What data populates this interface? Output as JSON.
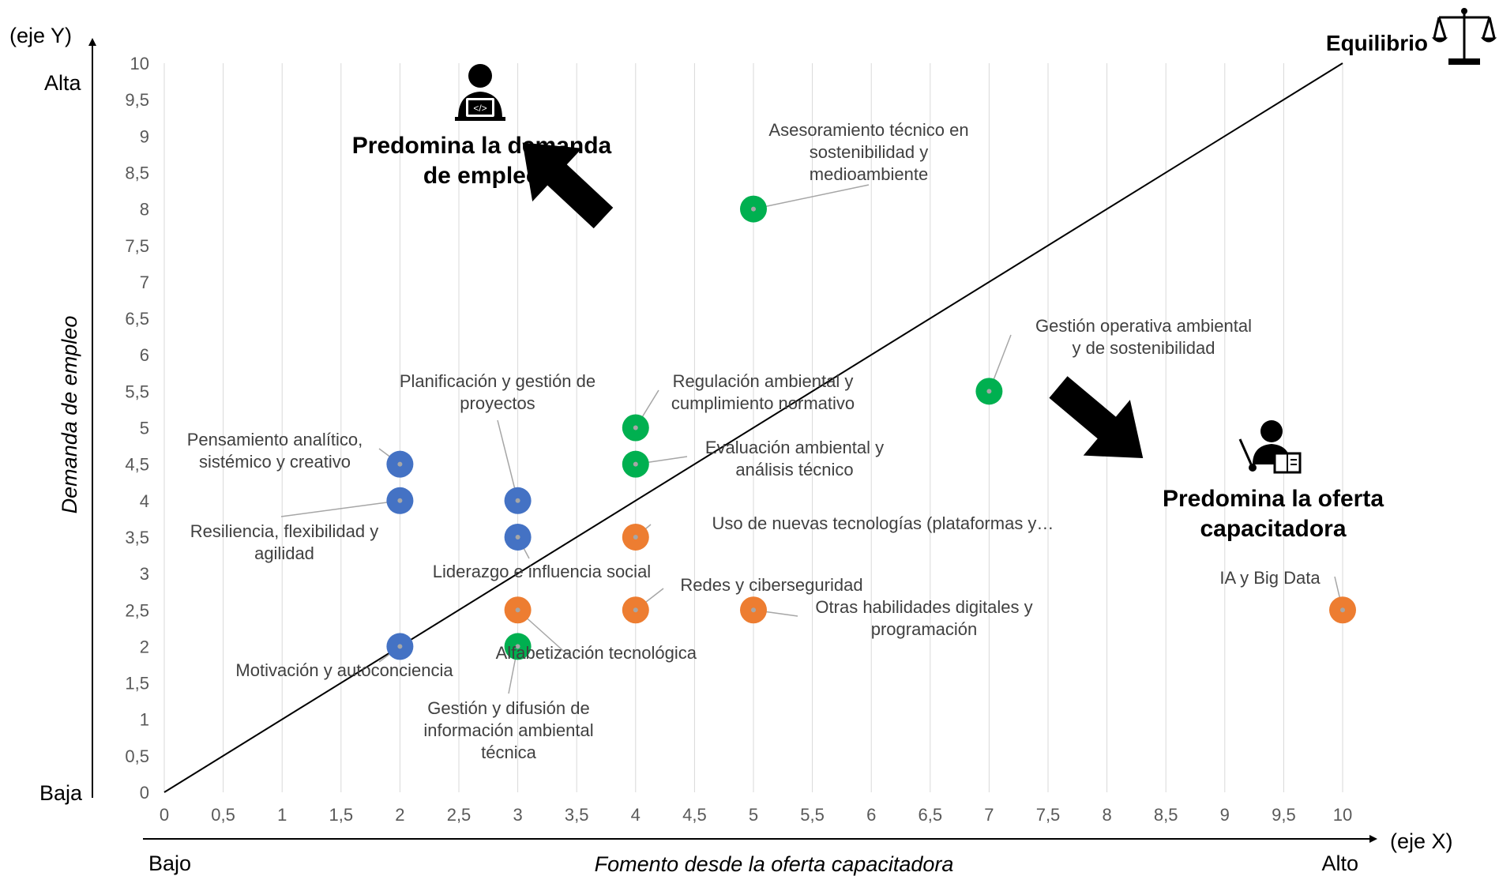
{
  "chart_data": {
    "type": "scatter",
    "x_axis": {
      "label": "Fomento desde la oferta capacitadora",
      "range": [
        0,
        10
      ],
      "ticks": [
        "0",
        "0,5",
        "1",
        "1,5",
        "2",
        "2,5",
        "3",
        "3,5",
        "4",
        "4,5",
        "5",
        "5,5",
        "6",
        "6,5",
        "7",
        "7,5",
        "8",
        "8,5",
        "9",
        "9,5",
        "10"
      ],
      "low_label": "Bajo",
      "high_label": "Alto",
      "axis_name": "(eje X)"
    },
    "y_axis": {
      "label": "Demanda de empleo",
      "range": [
        0,
        10
      ],
      "ticks": [
        "0",
        "0,5",
        "1",
        "1,5",
        "2",
        "2,5",
        "3",
        "3,5",
        "4",
        "4,5",
        "5",
        "5,5",
        "6",
        "6,5",
        "7",
        "7,5",
        "8",
        "8,5",
        "9",
        "9,5",
        "10"
      ],
      "low_label": "Baja",
      "high_label": "Alta",
      "axis_name": "(eje Y)"
    },
    "grid": "vertical",
    "equilibrium_line": {
      "from": [
        0,
        0
      ],
      "to": [
        10,
        10
      ],
      "label": "Equilibrio"
    },
    "regions": [
      {
        "name": "demand",
        "lines": [
          "Predomina la demanda",
          "de empleo"
        ]
      },
      {
        "name": "supply",
        "lines": [
          "Predomina la oferta",
          "capacitadora"
        ]
      }
    ],
    "colors": {
      "blue": "#4472C4",
      "green": "#00B050",
      "orange": "#ED7D31",
      "line": "#000000",
      "grid": "#D9D9D9"
    },
    "points": [
      {
        "x": 5,
        "y": 8,
        "color": "green",
        "label": [
          "Asesoramiento técnico en",
          "sostenibilidad y",
          "medioambiente"
        ]
      },
      {
        "x": 7,
        "y": 5.5,
        "color": "green",
        "label": [
          "Gestión operativa ambiental",
          "y de sostenibilidad"
        ]
      },
      {
        "x": 4,
        "y": 5,
        "color": "green",
        "label": [
          "Regulación ambiental y",
          "cumplimiento normativo"
        ]
      },
      {
        "x": 4,
        "y": 4.5,
        "color": "green",
        "label": [
          "Evaluación ambiental y",
          "análisis técnico"
        ]
      },
      {
        "x": 3,
        "y": 2,
        "color": "green",
        "label": [
          "Gestión y difusión de",
          "información ambiental",
          "técnica"
        ]
      },
      {
        "x": 2,
        "y": 4.5,
        "color": "blue",
        "label": [
          "Pensamiento analítico,",
          "sistémico y creativo"
        ]
      },
      {
        "x": 2,
        "y": 4,
        "color": "blue",
        "label": [
          "Resiliencia, flexibilidad y",
          "agilidad"
        ]
      },
      {
        "x": 3,
        "y": 4,
        "color": "blue",
        "label": [
          "Planificación y gestión de",
          "proyectos"
        ]
      },
      {
        "x": 3,
        "y": 3.5,
        "color": "blue",
        "label": [
          "Liderazgo e influencia social"
        ]
      },
      {
        "x": 2,
        "y": 2,
        "color": "blue",
        "label": [
          "Motivación y autoconciencia"
        ]
      },
      {
        "x": 4,
        "y": 3.5,
        "color": "orange",
        "label": [
          "Uso de nuevas tecnologías (plataformas y…"
        ]
      },
      {
        "x": 4,
        "y": 2.5,
        "color": "orange",
        "label": [
          "Redes y ciberseguridad"
        ]
      },
      {
        "x": 5,
        "y": 2.5,
        "color": "orange",
        "label": [
          "Otras habilidades digitales y",
          "programación"
        ]
      },
      {
        "x": 3,
        "y": 2.5,
        "color": "orange",
        "label": [
          "Alfabetización tecnológica"
        ]
      },
      {
        "x": 10,
        "y": 2.5,
        "color": "orange",
        "label": [
          "IA y Big Data"
        ]
      }
    ]
  },
  "icons": {
    "demand": "programmer-icon",
    "supply": "teacher-icon",
    "equilibrium": "balance-scale-icon"
  }
}
